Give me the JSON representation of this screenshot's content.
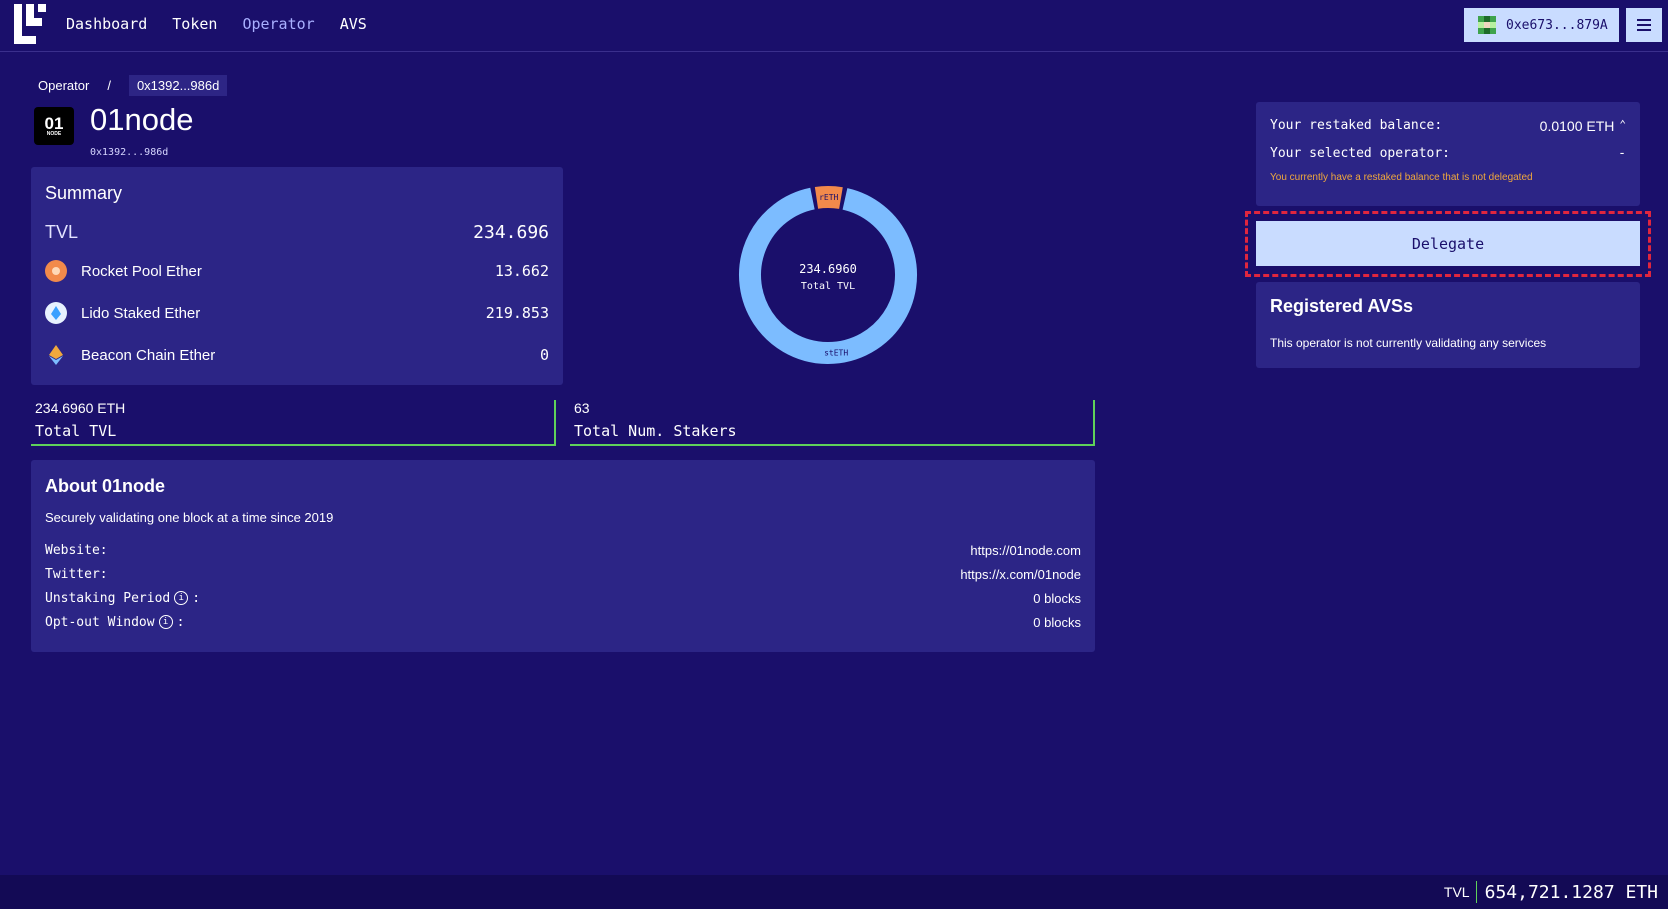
{
  "nav": {
    "items": [
      {
        "label": "Dashboard",
        "active": false
      },
      {
        "label": "Token",
        "active": false
      },
      {
        "label": "Operator",
        "active": true
      },
      {
        "label": "AVS",
        "active": false
      }
    ],
    "wallet": "0xe673...879A",
    "menu_icon": "hamburger-icon",
    "logo_icon": "eigenlayer-logo"
  },
  "breadcrumb": {
    "root": "Operator",
    "separator": "/",
    "current": "0x1392...986d"
  },
  "operator": {
    "logo_text": "01",
    "logo_subtext": "NODE",
    "name": "01node",
    "address": "0x1392...986d"
  },
  "summary": {
    "title": "Summary",
    "tvl_label": "TVL",
    "tvl_value": "234.696",
    "assets": [
      {
        "name": "Rocket Pool Ether",
        "value": "13.662",
        "icon": "rocket-pool-icon"
      },
      {
        "name": "Lido Staked Ether",
        "value": "219.853",
        "icon": "lido-icon"
      },
      {
        "name": "Beacon Chain Ether",
        "value": "0",
        "icon": "eth-icon"
      }
    ]
  },
  "chart_data": {
    "type": "pie",
    "categories": [
      "rETH",
      "stETH"
    ],
    "values": [
      13.662,
      219.853
    ],
    "center_value": "234.6960",
    "center_label": "Total TVL",
    "colors": [
      "#f28a4b",
      "#7cbcff"
    ]
  },
  "stats": [
    {
      "value": "234.6960 ETH",
      "label": "Total TVL"
    },
    {
      "value": "63",
      "label": "Total Num. Stakers"
    }
  ],
  "about": {
    "title": "About 01node",
    "description": "Securely validating one block at a time since 2019",
    "rows": [
      {
        "key": "Website:",
        "value": "https://01node.com",
        "info": false
      },
      {
        "key": "Twitter:",
        "value": "https://x.com/01node",
        "info": false
      },
      {
        "key": "Unstaking Period",
        "suffix": ":",
        "value": "0 blocks",
        "info": true
      },
      {
        "key": "Opt-out Window",
        "suffix": ":",
        "value": "0 blocks",
        "info": true
      }
    ]
  },
  "balance": {
    "restaked_label": "Your restaked balance:",
    "restaked_value": "0.0100 ETH",
    "operator_label": "Your selected operator:",
    "operator_value": "-",
    "warning": "You currently have a restaked balance that is not delegated"
  },
  "delegate_label": "Delegate",
  "avs": {
    "title": "Registered AVSs",
    "message": "This operator is not currently validating any services"
  },
  "footer": {
    "label": "TVL",
    "value": "654,721.1287 ETH"
  }
}
